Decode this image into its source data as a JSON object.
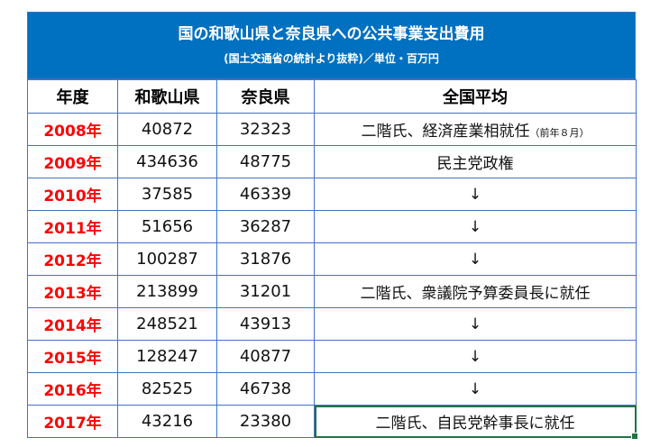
{
  "title": "国の和歌山県と奈良県への公共事業支出費用",
  "subtitle": "(国土交通省の統計より抜粋)／単位・百万円",
  "headers": [
    "年度",
    "和歌山県",
    "奈良県",
    "全国平均"
  ],
  "rows": [
    {
      "year": "2008年",
      "wakayama": "40872",
      "nara": "32323",
      "note": "二階氏、経済産業相就任",
      "note_small": "（前年８月）"
    },
    {
      "year": "2009年",
      "wakayama": "434636",
      "nara": "48775",
      "note": "民主党政権"
    },
    {
      "year": "2010年",
      "wakayama": "37585",
      "nara": "46339",
      "note": "↓"
    },
    {
      "year": "2011年",
      "wakayama": "51656",
      "nara": "36287",
      "note": "↓"
    },
    {
      "year": "2012年",
      "wakayama": "100287",
      "nara": "31876",
      "note": "↓"
    },
    {
      "year": "2013年",
      "wakayama": "213899",
      "nara": "31201",
      "note": "二階氏、衆議院予算委員長に就任"
    },
    {
      "year": "2014年",
      "wakayama": "248521",
      "nara": "43913",
      "note": "↓"
    },
    {
      "year": "2015年",
      "wakayama": "128247",
      "nara": "40877",
      "note": "↓"
    },
    {
      "year": "2016年",
      "wakayama": "82525",
      "nara": "46738",
      "note": "↓"
    },
    {
      "year": "2017年",
      "wakayama": "43216",
      "nara": "23380",
      "note": "二階氏、自民党幹事長に就任"
    }
  ],
  "colors": {
    "banner": "#0070c0",
    "year_text": "#ff0000",
    "grid": "#4472c4",
    "selection": "#217346"
  }
}
